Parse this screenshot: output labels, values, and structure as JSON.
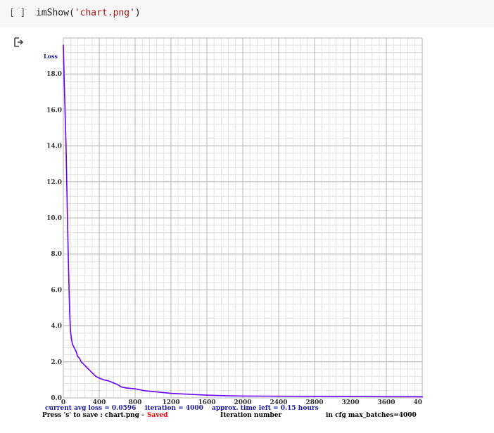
{
  "cell": {
    "run_indicator": "[ ]",
    "code_fn": "imShow(",
    "code_arg": "'chart.png'",
    "code_close": ")"
  },
  "output_icon": "output-arrow-icon",
  "chart_data": {
    "type": "line",
    "ylabel": "Loss",
    "xlabel": "Iteration number",
    "y_ticks": [
      "0.0",
      "2.0",
      "4.0",
      "6.0",
      "8.0",
      "10.0",
      "12.0",
      "14.0",
      "16.0",
      "18.0"
    ],
    "x_ticks": [
      "0",
      "400",
      "800",
      "1200",
      "1600",
      "2000",
      "2400",
      "2800",
      "3200",
      "3600",
      "40"
    ],
    "xlim": [
      0,
      4000
    ],
    "ylim": [
      0,
      20
    ],
    "grid": true,
    "series": [
      {
        "color": "#6a00ff",
        "x": [
          0,
          10,
          20,
          30,
          40,
          50,
          60,
          70,
          80,
          90,
          100,
          120,
          140,
          160,
          180,
          200,
          240,
          280,
          320,
          360,
          400,
          450,
          500,
          550,
          600,
          650,
          700,
          800,
          900,
          1000,
          1100,
          1200,
          1400,
          1600,
          1800,
          2000,
          2400,
          2800,
          3200,
          3600,
          4000
        ],
        "y": [
          19.6,
          17.6,
          15.8,
          14.0,
          11.5,
          9.0,
          6.8,
          4.8,
          3.7,
          3.3,
          3.0,
          2.8,
          2.6,
          2.3,
          2.2,
          2.0,
          1.8,
          1.6,
          1.4,
          1.2,
          1.1,
          1.0,
          0.95,
          0.85,
          0.75,
          0.6,
          0.55,
          0.5,
          0.4,
          0.35,
          0.3,
          0.25,
          0.2,
          0.15,
          0.12,
          0.1,
          0.09,
          0.08,
          0.07,
          0.065,
          0.06
        ]
      }
    ]
  },
  "footer": {
    "line1_loss": "current avg loss = 0.0596",
    "line1_iter": "iteration = 4000",
    "line1_time": "approx. time left = 0.15 hours",
    "line2_save": "Press 's' to save : chart.png -",
    "line2_saved": "Saved",
    "line2_xlabel": "Iteration number",
    "line2_cfg": "in cfg max_batches=4000"
  },
  "colors": {
    "series": "#6a00ff",
    "footer_blue": "#1a1aa0",
    "saved_red": "#ff0000",
    "grid": "#c8c8c8",
    "axis_text": "#000000"
  }
}
